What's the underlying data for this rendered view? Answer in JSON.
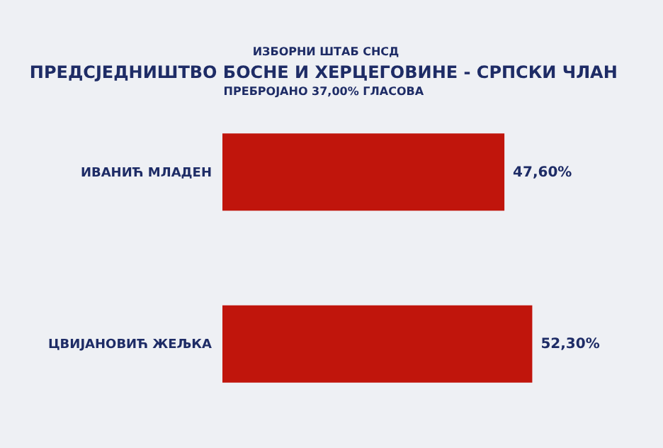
{
  "chart_data": {
    "type": "bar",
    "orientation": "horizontal",
    "title": "ПРЕДСЈЕДНИШТВО БОСНЕ И ХЕРЦЕГОВИНЕ - СРПСКИ ЧЛАН",
    "subtitle": "ПРЕБРОЈАНО 37,00% ГЛАСОВА",
    "annotations": [
      "ИЗБОРНИ ШТАБ СНСД"
    ],
    "categories": [
      "ИВАНИЋ МЛАДЕН",
      "ЦВИЈАНОВИЋ ЖЕЉКА"
    ],
    "values": [
      47.6,
      52.3
    ],
    "value_labels": [
      "47,60%",
      "52,30%"
    ],
    "color": "#c0150c"
  }
}
